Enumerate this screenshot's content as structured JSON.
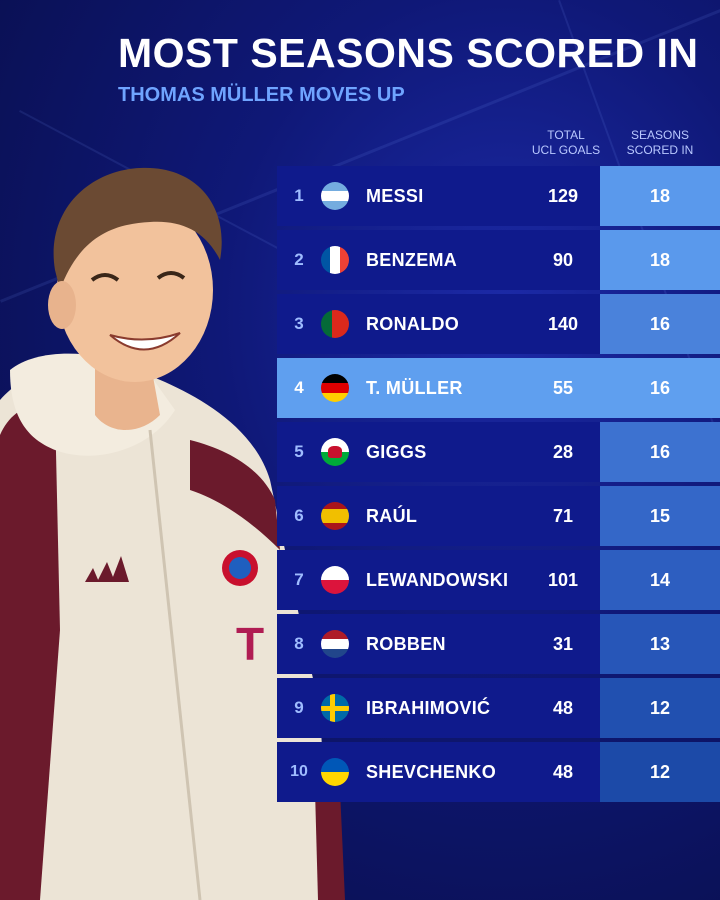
{
  "header": {
    "title": "MOST SEASONS SCORED IN",
    "subtitle": "THOMAS MÜLLER MOVES UP"
  },
  "columns": {
    "goals": [
      "TOTAL",
      "UCL GOALS"
    ],
    "seasons": [
      "SEASONS",
      "SCORED IN"
    ]
  },
  "rows": [
    {
      "rank": "1",
      "flag": "argentina-flag-icon",
      "name": "MESSI",
      "goals": "129",
      "seasons": "18"
    },
    {
      "rank": "2",
      "flag": "france-flag-icon",
      "name": "BENZEMA",
      "goals": "90",
      "seasons": "18"
    },
    {
      "rank": "3",
      "flag": "portugal-flag-icon",
      "name": "RONALDO",
      "goals": "140",
      "seasons": "16"
    },
    {
      "rank": "4",
      "flag": "germany-flag-icon",
      "name": "T. MÜLLER",
      "goals": "55",
      "seasons": "16"
    },
    {
      "rank": "5",
      "flag": "wales-flag-icon",
      "name": "GIGGS",
      "goals": "28",
      "seasons": "16"
    },
    {
      "rank": "6",
      "flag": "spain-flag-icon",
      "name": "RAÚL",
      "goals": "71",
      "seasons": "15"
    },
    {
      "rank": "7",
      "flag": "poland-flag-icon",
      "name": "LEWANDOWSKI",
      "goals": "101",
      "seasons": "14"
    },
    {
      "rank": "8",
      "flag": "netherlands-flag-icon",
      "name": "ROBBEN",
      "goals": "31",
      "seasons": "13"
    },
    {
      "rank": "9",
      "flag": "sweden-flag-icon",
      "name": "IBRAHIMOVIĆ",
      "goals": "48",
      "seasons": "12"
    },
    {
      "rank": "10",
      "flag": "ukraine-flag-icon",
      "name": "SHEVCHENKO",
      "goals": "48",
      "seasons": "12"
    }
  ],
  "colors": {
    "background": "#0f1877",
    "highlight": "#5f9fef",
    "seasons_cell": "#3568c9",
    "subtitle": "#6fa4ff"
  },
  "highlight_rank": "4"
}
